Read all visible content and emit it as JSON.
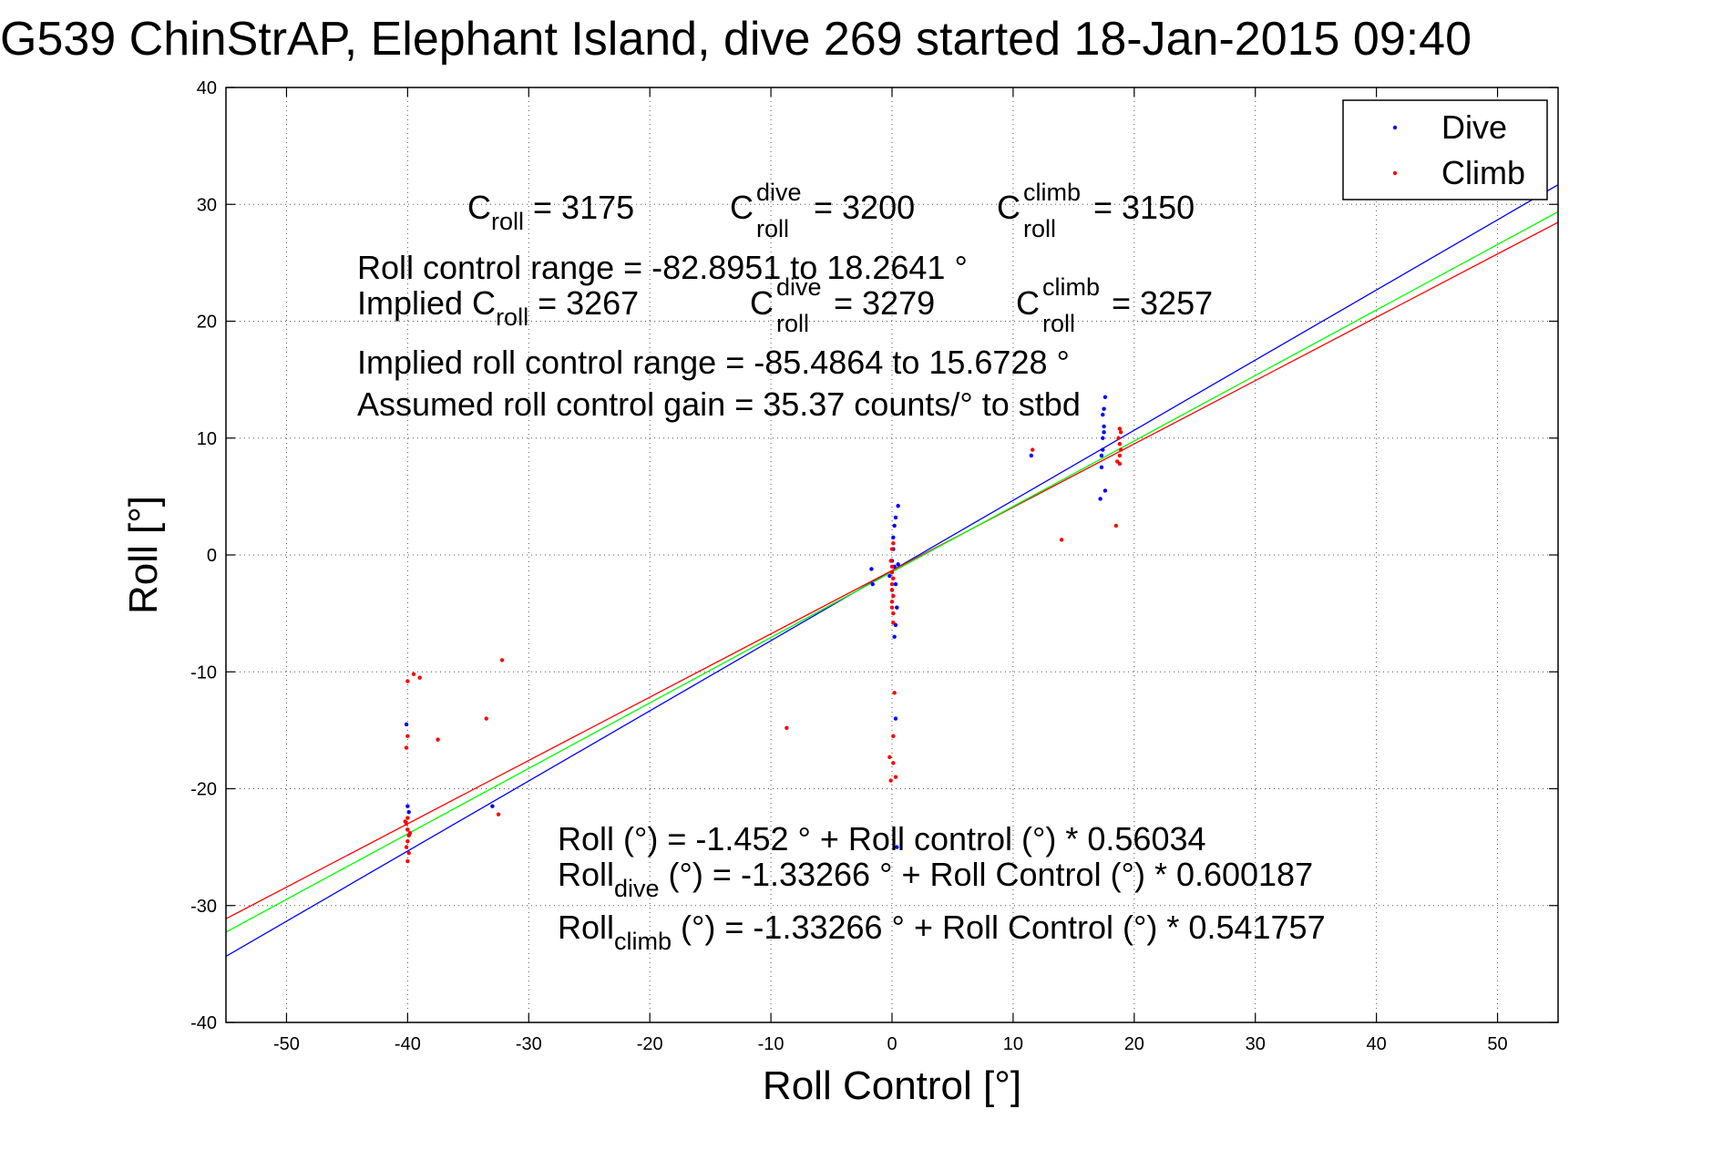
{
  "chart_data": {
    "type": "scatter",
    "title": "G539 ChinStrAP, Elephant Island, dive 269 started 18-Jan-2015 09:40",
    "xlabel": "Roll Control [°]",
    "ylabel": "Roll [°]",
    "xlim": [
      -55,
      55
    ],
    "ylim": [
      -40,
      40
    ],
    "xticks": [
      -50,
      -40,
      -30,
      -20,
      -10,
      0,
      10,
      20,
      30,
      40,
      50
    ],
    "yticks": [
      -40,
      -30,
      -20,
      -10,
      0,
      10,
      20,
      30,
      40
    ],
    "grid": true,
    "legend_position": "top-right",
    "series": [
      {
        "name": "Dive",
        "color": "#0000ff",
        "points": [
          [
            -40.1,
            -14.5
          ],
          [
            -40.0,
            -21.5
          ],
          [
            -39.9,
            -22.0
          ],
          [
            -40.0,
            -23.5
          ],
          [
            -39.9,
            -24.0
          ],
          [
            -33.0,
            -21.5
          ],
          [
            -1.7,
            -1.2
          ],
          [
            -1.6,
            -2.5
          ],
          [
            0.0,
            -0.5
          ],
          [
            0.1,
            0.5
          ],
          [
            0.1,
            1.5
          ],
          [
            0.2,
            2.5
          ],
          [
            0.3,
            3.2
          ],
          [
            0.5,
            4.2
          ],
          [
            0.2,
            -1.0
          ],
          [
            0.3,
            -2.5
          ],
          [
            0.4,
            -4.5
          ],
          [
            0.3,
            -6.0
          ],
          [
            0.2,
            -7.0
          ],
          [
            0.3,
            -14.0
          ],
          [
            0.4,
            -25.0
          ],
          [
            0.5,
            -0.8
          ],
          [
            -0.2,
            -1.8
          ],
          [
            0.0,
            -3.0
          ],
          [
            17.3,
            7.5
          ],
          [
            17.4,
            9.0
          ],
          [
            17.4,
            10.0
          ],
          [
            17.5,
            11.0
          ],
          [
            17.4,
            12.0
          ],
          [
            17.5,
            12.5
          ],
          [
            17.6,
            13.5
          ],
          [
            17.3,
            8.5
          ],
          [
            17.5,
            10.5
          ],
          [
            17.6,
            5.5
          ],
          [
            17.2,
            4.8
          ],
          [
            11.5,
            8.5
          ]
        ]
      },
      {
        "name": "Climb",
        "color": "#ff0000",
        "points": [
          [
            -40.0,
            -10.8
          ],
          [
            -39.5,
            -10.2
          ],
          [
            -39.0,
            -10.5
          ],
          [
            -40.0,
            -15.5
          ],
          [
            -40.1,
            -16.5
          ],
          [
            -40.0,
            -22.5
          ],
          [
            -40.1,
            -23.0
          ],
          [
            -40.0,
            -23.5
          ],
          [
            -39.9,
            -24.0
          ],
          [
            -40.0,
            -24.5
          ],
          [
            -40.1,
            -25.0
          ],
          [
            -39.9,
            -25.5
          ],
          [
            -40.0,
            -26.2
          ],
          [
            -40.2,
            -22.8
          ],
          [
            -39.8,
            -23.8
          ],
          [
            -37.5,
            -15.8
          ],
          [
            -33.5,
            -14.0
          ],
          [
            -32.2,
            -9.0
          ],
          [
            -32.5,
            -22.2
          ],
          [
            -8.7,
            -14.8
          ],
          [
            -0.1,
            -0.5
          ],
          [
            0.0,
            -1.0
          ],
          [
            0.0,
            -1.5
          ],
          [
            0.1,
            -2.0
          ],
          [
            0.0,
            -2.5
          ],
          [
            0.0,
            -3.0
          ],
          [
            0.1,
            -3.5
          ],
          [
            0.0,
            -4.0
          ],
          [
            0.0,
            -4.5
          ],
          [
            0.1,
            -5.0
          ],
          [
            0.1,
            -5.8
          ],
          [
            0.0,
            0.5
          ],
          [
            0.1,
            1.0
          ],
          [
            0.2,
            -11.8
          ],
          [
            0.1,
            -15.5
          ],
          [
            -0.2,
            -17.3
          ],
          [
            0.1,
            -17.8
          ],
          [
            -0.1,
            -19.3
          ],
          [
            0.3,
            -19.0
          ],
          [
            18.8,
            10.8
          ],
          [
            18.9,
            10.5
          ],
          [
            18.7,
            10.0
          ],
          [
            18.8,
            9.5
          ],
          [
            18.9,
            9.0
          ],
          [
            18.8,
            8.5
          ],
          [
            18.6,
            8.0
          ],
          [
            18.8,
            7.8
          ],
          [
            18.5,
            2.5
          ],
          [
            14.0,
            1.3
          ],
          [
            11.6,
            9.0
          ]
        ]
      }
    ],
    "fit_lines": [
      {
        "color": "#0000ff",
        "intercept": -1.33266,
        "slope": 0.600187
      },
      {
        "color": "#ff0000",
        "intercept": -1.33266,
        "slope": 0.541757
      },
      {
        "color": "#00ff00",
        "intercept": -1.452,
        "slope": 0.56034
      }
    ],
    "annotations": {
      "croll_label": "C",
      "croll_sub": "roll",
      "croll_val": " = 3175",
      "cdive_label": "C",
      "cdive_sup": "dive",
      "cdive_sub": "roll",
      "cdive_val": " = 3200",
      "cclimb_label": "C",
      "cclimb_sup": "climb",
      "cclimb_sub": "roll",
      "cclimb_val": " = 3150",
      "range_line": "Roll control range = -82.8951 to 18.2641 °",
      "implied_prefix": "Implied C",
      "implied_sub": "roll",
      "implied_val": " = 3267",
      "implied_dive_label": "C",
      "implied_dive_sup": "dive",
      "implied_dive_sub": "roll",
      "implied_dive_val": " = 3279",
      "implied_climb_label": "C",
      "implied_climb_sup": "climb",
      "implied_climb_sub": "roll",
      "implied_climb_val": " = 3257",
      "implied_range_line": "Implied roll control range = -85.4864 to 15.6728 °",
      "gain_line": "Assumed roll control gain = 35.37 counts/° to stbd",
      "eq_roll": "Roll (°) = -1.452 ° + Roll control (°) * 0.56034",
      "eq_dive_prefix": "Roll",
      "eq_dive_sub": "dive",
      "eq_dive_rest": " (°) = -1.33266 ° + Roll Control (°) * 0.600187",
      "eq_climb_prefix": "Roll",
      "eq_climb_sub": "climb",
      "eq_climb_rest": " (°) = -1.33266 ° + Roll Control (°) * 0.541757"
    }
  }
}
